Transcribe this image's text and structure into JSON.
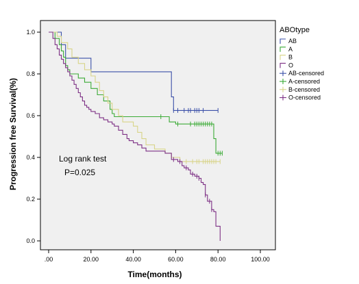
{
  "chart_data": {
    "type": "line",
    "step": true,
    "xlabel": "Time(months)",
    "ylabel": "Progression free Survival(%)",
    "xlim": [
      0,
      100
    ],
    "ylim": [
      0,
      1.0
    ],
    "x_ticks": [
      ".00",
      "20.00",
      "40.00",
      "60.00",
      "80.00",
      "100.00"
    ],
    "y_ticks": [
      "0.0",
      "0.2",
      "0.4",
      "0.6",
      "0.8",
      "1.0"
    ],
    "legend_title": "ABOtype",
    "legend_placement": "right",
    "legend_entries": [
      "AB",
      "A",
      "B",
      "O",
      "AB-censored",
      "A-censored",
      "B-censored",
      "O-censored"
    ],
    "annotation_lines": [
      "Log rank test",
      "P=0.025"
    ],
    "plot_background": "#f0f0f0",
    "series": [
      {
        "name": "AB",
        "color": "#3a4fa8",
        "steps": [
          [
            0,
            1.0
          ],
          [
            6,
            0.94
          ],
          [
            8,
            0.875
          ],
          [
            20,
            0.81
          ],
          [
            58,
            0.69
          ],
          [
            59,
            0.625
          ],
          [
            80,
            0.625
          ]
        ],
        "censored": [
          59,
          61,
          64,
          66,
          67,
          69,
          70,
          71,
          73,
          80
        ]
      },
      {
        "name": "A",
        "color": "#3aaa35",
        "steps": [
          [
            0,
            1.0
          ],
          [
            3,
            0.97
          ],
          [
            5,
            0.94
          ],
          [
            6,
            0.91
          ],
          [
            7,
            0.88
          ],
          [
            8,
            0.84
          ],
          [
            9,
            0.82
          ],
          [
            10,
            0.8
          ],
          [
            14,
            0.78
          ],
          [
            17,
            0.76
          ],
          [
            20,
            0.73
          ],
          [
            23,
            0.7
          ],
          [
            26,
            0.67
          ],
          [
            29,
            0.63
          ],
          [
            30,
            0.61
          ],
          [
            31,
            0.595
          ],
          [
            57,
            0.57
          ],
          [
            60,
            0.56
          ],
          [
            78,
            0.49
          ],
          [
            79,
            0.42
          ],
          [
            82,
            0.42
          ]
        ],
        "censored": [
          53,
          61,
          67,
          69,
          70,
          71,
          72,
          73,
          74,
          75,
          76,
          77,
          80,
          81,
          82
        ]
      },
      {
        "name": "B",
        "color": "#d8d488",
        "steps": [
          [
            0,
            1.0
          ],
          [
            4,
            0.98
          ],
          [
            6,
            0.95
          ],
          [
            9,
            0.92
          ],
          [
            11,
            0.88
          ],
          [
            14,
            0.85
          ],
          [
            17,
            0.82
          ],
          [
            20,
            0.79
          ],
          [
            22,
            0.76
          ],
          [
            24,
            0.72
          ],
          [
            26,
            0.69
          ],
          [
            28,
            0.66
          ],
          [
            30,
            0.63
          ],
          [
            33,
            0.6
          ],
          [
            35,
            0.57
          ],
          [
            40,
            0.55
          ],
          [
            42,
            0.52
          ],
          [
            44,
            0.49
          ],
          [
            46,
            0.46
          ],
          [
            50,
            0.44
          ],
          [
            55,
            0.42
          ],
          [
            58,
            0.4
          ],
          [
            62,
            0.38
          ],
          [
            81,
            0.38
          ]
        ],
        "censored": [
          65,
          68,
          70,
          71,
          73,
          74,
          75,
          76,
          77,
          78,
          79,
          81
        ]
      },
      {
        "name": "O",
        "color": "#7c2f84",
        "steps": [
          [
            0,
            1.0
          ],
          [
            2,
            0.97
          ],
          [
            3,
            0.94
          ],
          [
            4,
            0.92
          ],
          [
            5,
            0.89
          ],
          [
            6,
            0.87
          ],
          [
            7,
            0.85
          ],
          [
            8,
            0.83
          ],
          [
            9,
            0.81
          ],
          [
            10,
            0.79
          ],
          [
            11,
            0.77
          ],
          [
            12,
            0.75
          ],
          [
            13,
            0.73
          ],
          [
            14,
            0.71
          ],
          [
            15,
            0.69
          ],
          [
            16,
            0.67
          ],
          [
            17,
            0.65
          ],
          [
            18,
            0.64
          ],
          [
            19,
            0.63
          ],
          [
            20,
            0.62
          ],
          [
            22,
            0.61
          ],
          [
            24,
            0.59
          ],
          [
            26,
            0.58
          ],
          [
            28,
            0.57
          ],
          [
            30,
            0.56
          ],
          [
            31,
            0.55
          ],
          [
            33,
            0.53
          ],
          [
            35,
            0.51
          ],
          [
            37,
            0.49
          ],
          [
            38,
            0.48
          ],
          [
            40,
            0.47
          ],
          [
            42,
            0.46
          ],
          [
            44,
            0.445
          ],
          [
            46,
            0.43
          ],
          [
            48,
            0.43
          ],
          [
            55,
            0.42
          ],
          [
            58,
            0.39
          ],
          [
            61,
            0.38
          ],
          [
            63,
            0.36
          ],
          [
            64,
            0.35
          ],
          [
            66,
            0.34
          ],
          [
            67,
            0.32
          ],
          [
            69,
            0.31
          ],
          [
            71,
            0.3
          ],
          [
            72,
            0.28
          ],
          [
            73,
            0.27
          ],
          [
            74,
            0.22
          ],
          [
            75,
            0.19
          ],
          [
            77,
            0.15
          ],
          [
            78,
            0.14
          ],
          [
            79,
            0.07
          ],
          [
            81,
            0.07
          ],
          [
            81,
            0.0
          ]
        ],
        "censored": [
          59,
          62,
          65,
          68,
          70,
          71,
          74,
          76,
          77
        ]
      }
    ]
  }
}
